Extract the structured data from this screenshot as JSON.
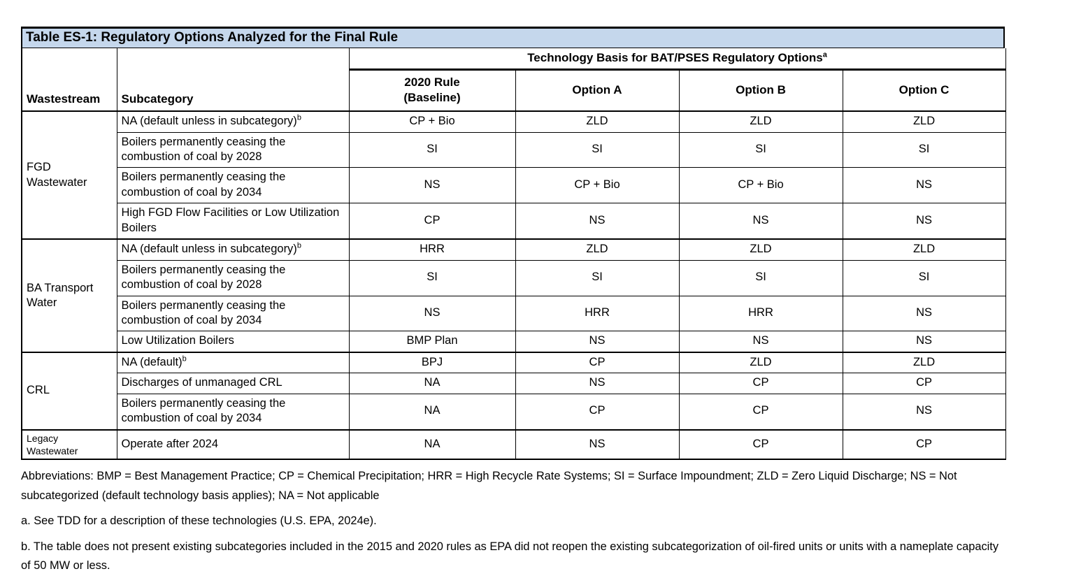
{
  "title": "Table ES-1: Regulatory Options Analyzed for the Final Rule",
  "table": {
    "headers": {
      "wastestream": "Wastestream",
      "subcategory": "Subcategory",
      "tech_basis": "Technology Basis for BAT/PSES Regulatory Options",
      "tech_basis_note": "a",
      "baseline": [
        "2020 Rule",
        "(Baseline)"
      ],
      "options": [
        "Option A",
        "Option B",
        "Option C"
      ]
    },
    "sections": [
      {
        "wastestream": "FGD Wastewater",
        "rows": [
          {
            "subcategory": "NA (default unless in subcategory)",
            "note": "b",
            "values": [
              "CP + Bio",
              "ZLD",
              "ZLD",
              "ZLD"
            ]
          },
          {
            "subcategory": "Boilers permanently ceasing the combustion of coal by 2028",
            "values": [
              "SI",
              "SI",
              "SI",
              "SI"
            ]
          },
          {
            "subcategory": "Boilers permanently ceasing the combustion of coal by 2034",
            "values": [
              "NS",
              "CP + Bio",
              "CP + Bio",
              "NS"
            ]
          },
          {
            "subcategory": "High FGD Flow Facilities or Low Utilization Boilers",
            "values": [
              "CP",
              "NS",
              "NS",
              "NS"
            ]
          }
        ]
      },
      {
        "wastestream": "BA Transport Water",
        "rows": [
          {
            "subcategory": "NA (default unless in subcategory)",
            "note": "b",
            "values": [
              "HRR",
              "ZLD",
              "ZLD",
              "ZLD"
            ]
          },
          {
            "subcategory": "Boilers permanently ceasing the combustion of coal by 2028",
            "values": [
              "SI",
              "SI",
              "SI",
              "SI"
            ]
          },
          {
            "subcategory": "Boilers permanently ceasing the combustion of coal by 2034",
            "values": [
              "NS",
              "HRR",
              "HRR",
              "NS"
            ]
          },
          {
            "subcategory": "Low Utilization Boilers",
            "values": [
              "BMP Plan",
              "NS",
              "NS",
              "NS"
            ]
          }
        ]
      },
      {
        "wastestream": "CRL",
        "rows": [
          {
            "subcategory": "NA (default)",
            "note": "b",
            "values": [
              "BPJ",
              "CP",
              "ZLD",
              "ZLD"
            ]
          },
          {
            "subcategory": "Discharges of unmanaged CRL",
            "values": [
              "NA",
              "NS",
              "CP",
              "CP"
            ]
          },
          {
            "subcategory": "Boilers permanently ceasing the combustion of coal by 2034",
            "values": [
              "NA",
              "CP",
              "CP",
              "NS"
            ]
          }
        ]
      },
      {
        "wastestream": "Legacy Wastewater",
        "small": true,
        "rows": [
          {
            "subcategory": "Operate after 2024",
            "values": [
              "NA",
              "NS",
              "CP",
              "CP"
            ]
          }
        ]
      }
    ]
  },
  "footnotes": {
    "abbreviations": "Abbreviations: BMP = Best Management Practice; CP = Chemical Precipitation; HRR = High Recycle Rate Systems; SI = Surface Impoundment; ZLD = Zero Liquid Discharge; NS = Not subcategorized (default technology basis applies); NA = Not applicable",
    "a": "a. See TDD for a description of these technologies (U.S. EPA, 2024e).",
    "b": "b. The table does not present existing subcategories included in the 2015 and 2020 rules as EPA did not reopen the existing subcategorization of oil-fired units or units with a nameplate capacity of 50 MW or less."
  }
}
